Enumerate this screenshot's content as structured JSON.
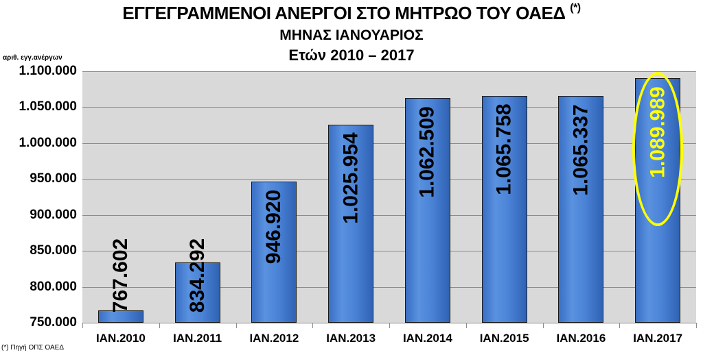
{
  "title": {
    "line1": "ΕΓΓΕΓΡΑΜΜΕΝΟΙ ΑΝΕΡΓΟΙ ΣΤΟ ΜΗΤΡΩΟ ΤΟΥ ΟΑΕΔ",
    "line1_sup": "(*)",
    "line2": "ΜΗΝΑΣ ΙΑΝΟΥΑΡΙΟΣ",
    "line3": "Ετών  2010 – 2017"
  },
  "ylabel": "αριθ. εγγ.ανέργων",
  "source_note": "(*) Πηγή ΟΠΣ ΟΑΕΔ",
  "colors": {
    "plot_bg": "#d9d9d9",
    "bar": "#4a82d6",
    "highlight": "#ffff00",
    "highlight_text": "#ffff00"
  },
  "chart_data": {
    "type": "bar",
    "title": "ΕΓΓΕΓΡΑΜΜΕΝΟΙ ΑΝΕΡΓΟΙ ΣΤΟ ΜΗΤΡΩΟ ΤΟΥ ΟΑΕΔ (*) — ΜΗΝΑΣ ΙΑΝΟΥΑΡΙΟΣ — Ετών 2010 – 2017",
    "xlabel": "",
    "ylabel": "αριθ. εγγ.ανέργων",
    "categories": [
      "IAN.2010",
      "IAN.2011",
      "IAN.2012",
      "IAN.2013",
      "IAN.2014",
      "IAN.2015",
      "IAN.2016",
      "IAN.2017"
    ],
    "values": [
      767602,
      834292,
      946920,
      1025954,
      1062509,
      1065758,
      1065337,
      1089989
    ],
    "value_labels": [
      "767.602",
      "834.292",
      "946.920",
      "1.025.954",
      "1.062.509",
      "1.065.758",
      "1.065.337",
      "1.089.989"
    ],
    "ylim": [
      750000,
      1100000
    ],
    "yticks": [
      750000,
      800000,
      850000,
      900000,
      950000,
      1000000,
      1050000,
      1100000
    ],
    "ytick_labels": [
      "750.000",
      "800.000",
      "850.000",
      "900.000",
      "950.000",
      "1.000.000",
      "1.050.000",
      "1.100.000"
    ],
    "grid": true,
    "legend": "none",
    "highlight": {
      "category": "IAN.2017",
      "style": "yellow ellipse, yellow label"
    },
    "footnote": "(*) Πηγή ΟΠΣ ΟΑΕΔ"
  }
}
